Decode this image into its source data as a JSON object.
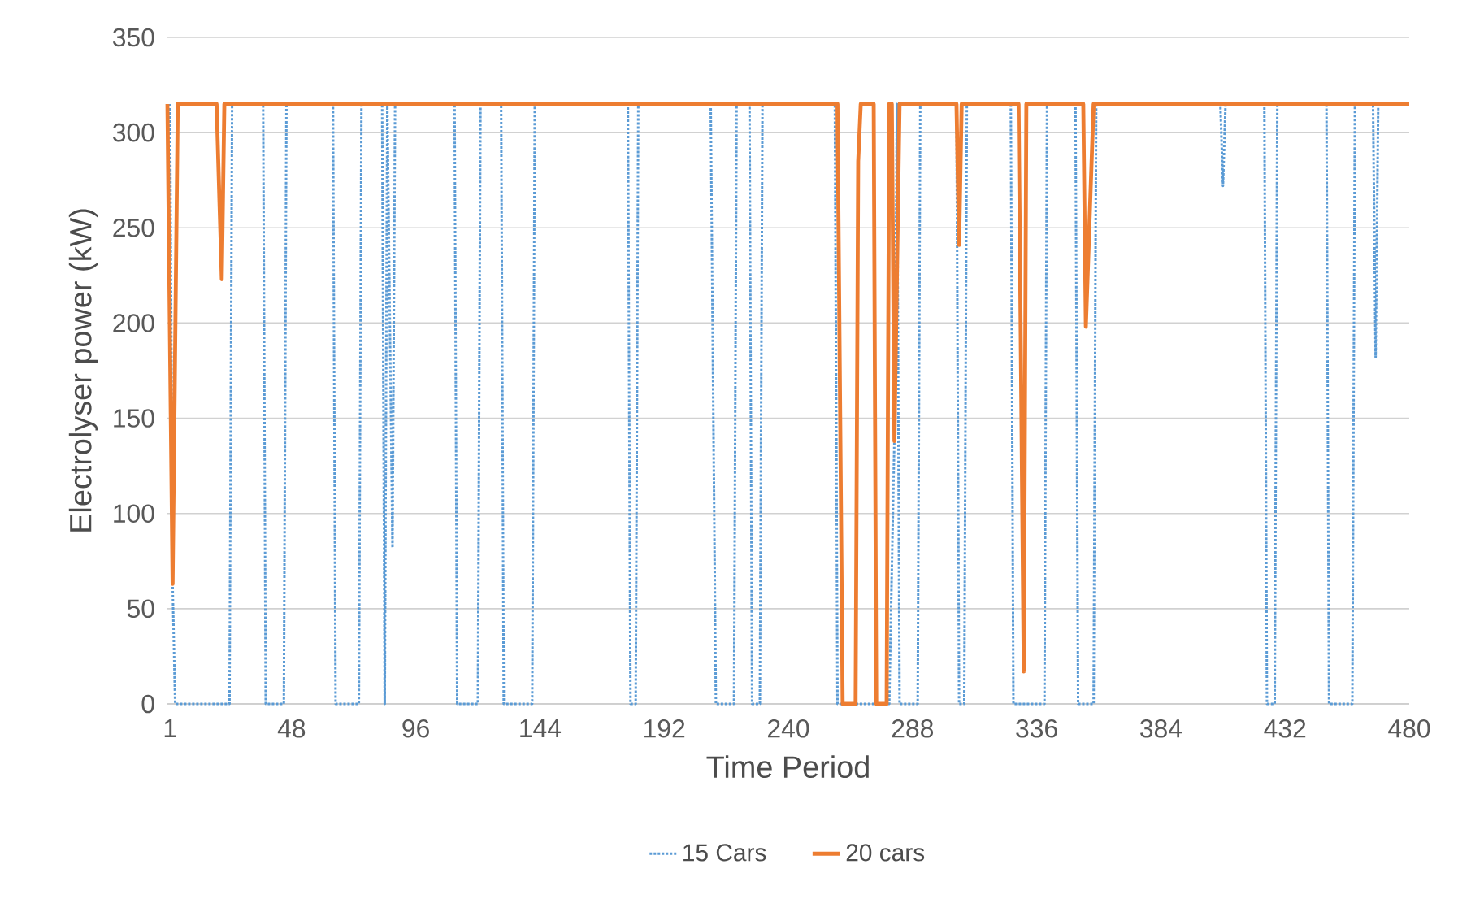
{
  "chart_data": {
    "type": "line",
    "xlabel": "Time Period",
    "ylabel": "Electrolyser power (kW)",
    "xlim": [
      0,
      480
    ],
    "xticks": [
      1,
      48,
      96,
      144,
      192,
      240,
      288,
      336,
      384,
      432,
      480
    ],
    "ylim": [
      0,
      350
    ],
    "yticks": [
      0,
      50,
      100,
      150,
      200,
      250,
      300,
      350
    ],
    "grid": "y",
    "legend": "bottom",
    "series": [
      {
        "name": "15 Cars",
        "color": "#5b9bd5",
        "line_style": "dotted",
        "x": [
          1,
          2,
          3,
          17,
          18,
          24,
          25,
          37,
          38,
          45,
          46,
          64,
          65,
          74,
          75,
          83,
          84,
          85,
          87,
          88,
          111,
          112,
          120,
          121,
          129,
          130,
          141,
          142,
          178,
          179,
          181,
          182,
          210,
          211,
          212,
          219,
          220,
          225,
          226,
          229,
          230,
          258,
          259,
          279,
          281,
          282,
          283,
          290,
          291,
          305,
          306,
          308,
          309,
          326,
          327,
          339,
          340,
          351,
          352,
          358,
          359,
          407,
          408,
          409,
          424,
          425,
          428,
          429,
          448,
          449,
          458,
          459,
          466,
          467,
          468
        ],
        "values": [
          315,
          63,
          0,
          0,
          0,
          0,
          315,
          315,
          0,
          0,
          315,
          315,
          0,
          0,
          315,
          315,
          0,
          315,
          82,
          315,
          315,
          0,
          0,
          315,
          315,
          0,
          0,
          315,
          315,
          0,
          0,
          315,
          315,
          155,
          0,
          0,
          315,
          315,
          0,
          0,
          315,
          315,
          0,
          0,
          140,
          315,
          0,
          0,
          315,
          315,
          0,
          0,
          315,
          315,
          0,
          0,
          315,
          315,
          0,
          0,
          315,
          315,
          272,
          315,
          315,
          0,
          0,
          315,
          315,
          0,
          0,
          315,
          315,
          182,
          315
        ]
      },
      {
        "name": "20 cars",
        "color": "#ed7d31",
        "line_style": "solid",
        "x": [
          0,
          2,
          4,
          19,
          21,
          22,
          259,
          261,
          266,
          267,
          268,
          273,
          274,
          278,
          279,
          280,
          281,
          283,
          305,
          306,
          307,
          329,
          331,
          332,
          354,
          355,
          358,
          480
        ],
        "values": [
          315,
          63,
          315,
          315,
          223,
          315,
          315,
          0,
          0,
          285,
          315,
          315,
          0,
          0,
          315,
          315,
          138,
          315,
          315,
          241,
          315,
          315,
          17,
          315,
          315,
          198,
          315,
          315
        ]
      }
    ]
  }
}
